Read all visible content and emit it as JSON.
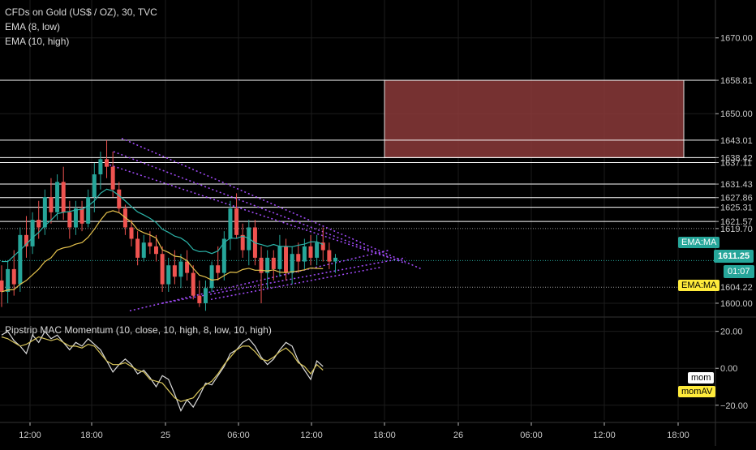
{
  "header": {
    "symbol": "CFDs on Gold (US$ / OZ), 30, TVC",
    "ema1": "EMA (8, low)",
    "ema2": "EMA (10, high)",
    "indicator": "Pipstrip MAC Momentum (10, close, 10, high, 8, low, 10, high)"
  },
  "colors": {
    "background": "#000000",
    "up": "#26a69a",
    "down": "#ef5350",
    "ema_low": "#e6c34d",
    "ema_high": "#2bb3a8",
    "channel": "#a64dff",
    "zone_fill": "#8b3a3a",
    "price_tag": "#26a69a",
    "ema_tag_teal": "#26a69a",
    "ema_tag_yellow": "#ffeb3b"
  },
  "tags": {
    "ema_teal": "EMA:MA",
    "ema_yellow": "EMA:MA",
    "price": "1611.25",
    "timer": "01:07",
    "mom": "mom",
    "momav": "momAV"
  },
  "chart_data": [
    {
      "type": "candlestick",
      "title": "CFDs on Gold (US$ / OZ), 30, TVC",
      "ylim": [
        1597,
        1680
      ],
      "y_ticks": [
        1600.0,
        1650.0,
        1670.0
      ],
      "x_ticks": [
        "12:00",
        "18:00",
        "25",
        "06:00",
        "12:00",
        "18:00",
        "26",
        "06:00",
        "12:00",
        "18:00"
      ],
      "level_labels": [
        1658.81,
        1643.01,
        1638.42,
        1637.11,
        1631.43,
        1627.86,
        1625.31,
        1621.57,
        1619.7,
        1604.22
      ],
      "last_price": 1611.25,
      "zone": {
        "x_from": "17:30",
        "x_to": "21:30",
        "y_from": 1638.42,
        "y_to": 1658.81
      },
      "candles": [
        {
          "o": 1606,
          "h": 1610,
          "l": 1599,
          "c": 1603
        },
        {
          "o": 1603,
          "h": 1611,
          "l": 1600,
          "c": 1609
        },
        {
          "o": 1609,
          "h": 1614,
          "l": 1602,
          "c": 1605
        },
        {
          "o": 1605,
          "h": 1620,
          "l": 1603,
          "c": 1618
        },
        {
          "o": 1618,
          "h": 1623,
          "l": 1612,
          "c": 1615
        },
        {
          "o": 1615,
          "h": 1624,
          "l": 1613,
          "c": 1622
        },
        {
          "o": 1622,
          "h": 1627,
          "l": 1617,
          "c": 1620
        },
        {
          "o": 1620,
          "h": 1630,
          "l": 1618,
          "c": 1628
        },
        {
          "o": 1628,
          "h": 1633,
          "l": 1621,
          "c": 1624
        },
        {
          "o": 1624,
          "h": 1634,
          "l": 1622,
          "c": 1632
        },
        {
          "o": 1632,
          "h": 1636,
          "l": 1622,
          "c": 1624
        },
        {
          "o": 1624,
          "h": 1627,
          "l": 1617,
          "c": 1620
        },
        {
          "o": 1620,
          "h": 1627,
          "l": 1618,
          "c": 1625
        },
        {
          "o": 1625,
          "h": 1627,
          "l": 1619,
          "c": 1621
        },
        {
          "o": 1621,
          "h": 1630,
          "l": 1620,
          "c": 1628
        },
        {
          "o": 1628,
          "h": 1637,
          "l": 1624,
          "c": 1634
        },
        {
          "o": 1634,
          "h": 1640,
          "l": 1630,
          "c": 1638
        },
        {
          "o": 1638,
          "h": 1643,
          "l": 1633,
          "c": 1636
        },
        {
          "o": 1636,
          "h": 1640,
          "l": 1628,
          "c": 1630
        },
        {
          "o": 1630,
          "h": 1632,
          "l": 1624,
          "c": 1625
        },
        {
          "o": 1625,
          "h": 1626,
          "l": 1618,
          "c": 1620
        },
        {
          "o": 1620,
          "h": 1622,
          "l": 1615,
          "c": 1617
        },
        {
          "o": 1617,
          "h": 1619,
          "l": 1610,
          "c": 1612
        },
        {
          "o": 1612,
          "h": 1618,
          "l": 1611,
          "c": 1616
        },
        {
          "o": 1616,
          "h": 1619,
          "l": 1613,
          "c": 1615
        },
        {
          "o": 1615,
          "h": 1618,
          "l": 1611,
          "c": 1613
        },
        {
          "o": 1613,
          "h": 1615,
          "l": 1603,
          "c": 1605
        },
        {
          "o": 1605,
          "h": 1612,
          "l": 1603,
          "c": 1610
        },
        {
          "o": 1610,
          "h": 1614,
          "l": 1605,
          "c": 1607
        },
        {
          "o": 1607,
          "h": 1613,
          "l": 1604,
          "c": 1611
        },
        {
          "o": 1611,
          "h": 1614,
          "l": 1606,
          "c": 1608
        },
        {
          "o": 1608,
          "h": 1610,
          "l": 1601,
          "c": 1602
        },
        {
          "o": 1602,
          "h": 1606,
          "l": 1599,
          "c": 1600
        },
        {
          "o": 1600,
          "h": 1606,
          "l": 1598,
          "c": 1604
        },
        {
          "o": 1604,
          "h": 1611,
          "l": 1603,
          "c": 1610
        },
        {
          "o": 1610,
          "h": 1615,
          "l": 1606,
          "c": 1608
        },
        {
          "o": 1608,
          "h": 1619,
          "l": 1606,
          "c": 1617
        },
        {
          "o": 1617,
          "h": 1627,
          "l": 1614,
          "c": 1625
        },
        {
          "o": 1625,
          "h": 1629,
          "l": 1617,
          "c": 1618
        },
        {
          "o": 1618,
          "h": 1621,
          "l": 1612,
          "c": 1614
        },
        {
          "o": 1614,
          "h": 1622,
          "l": 1610,
          "c": 1620
        },
        {
          "o": 1620,
          "h": 1622,
          "l": 1610,
          "c": 1612
        },
        {
          "o": 1612,
          "h": 1615,
          "l": 1600,
          "c": 1608
        },
        {
          "o": 1608,
          "h": 1614,
          "l": 1604,
          "c": 1612
        },
        {
          "o": 1612,
          "h": 1614,
          "l": 1606,
          "c": 1609
        },
        {
          "o": 1609,
          "h": 1618,
          "l": 1607,
          "c": 1615
        },
        {
          "o": 1615,
          "h": 1617,
          "l": 1606,
          "c": 1608
        },
        {
          "o": 1608,
          "h": 1615,
          "l": 1605,
          "c": 1613
        },
        {
          "o": 1613,
          "h": 1616,
          "l": 1608,
          "c": 1611
        },
        {
          "o": 1611,
          "h": 1617,
          "l": 1609,
          "c": 1615
        },
        {
          "o": 1615,
          "h": 1618,
          "l": 1610,
          "c": 1612
        },
        {
          "o": 1612,
          "h": 1618,
          "l": 1610,
          "c": 1616
        },
        {
          "o": 1616,
          "h": 1620,
          "l": 1611,
          "c": 1614
        },
        {
          "o": 1614,
          "h": 1616,
          "l": 1609,
          "c": 1611
        },
        {
          "o": 1611,
          "h": 1613,
          "l": 1608,
          "c": 1612
        }
      ],
      "ema_low": [
        1603,
        1603.5,
        1603.6,
        1605,
        1606,
        1607.5,
        1609,
        1611,
        1612,
        1614,
        1614.6,
        1614.9,
        1615.6,
        1616,
        1617.4,
        1619.5,
        1621.9,
        1623.9,
        1624.4,
        1623.9,
        1622.6,
        1621.4,
        1619.4,
        1618.6,
        1618,
        1617.2,
        1614.1,
        1613.4,
        1612.4,
        1612.2,
        1611.2,
        1609.2,
        1607.4,
        1606.9,
        1606.1,
        1606.3,
        1607.3,
        1608.2,
        1608.1,
        1608.9,
        1609.2,
        1608.7,
        1608.7,
        1608.5,
        1608.8,
        1608.2,
        1608.1,
        1608.3,
        1608.5,
        1608.8,
        1609.3,
        1609.2,
        1609.1
      ],
      "ema_high": [
        1611,
        1611,
        1612.5,
        1614,
        1615.6,
        1617.3,
        1618.7,
        1620.5,
        1621.9,
        1623.6,
        1624,
        1624.2,
        1624.6,
        1624.8,
        1625.7,
        1627,
        1629,
        1630.1,
        1629.6,
        1628.4,
        1627,
        1625.5,
        1624.1,
        1623.3,
        1622.4,
        1621.3,
        1619.5,
        1618.7,
        1617.7,
        1617.2,
        1616.1,
        1614.2,
        1613.6,
        1613.7,
        1613.1,
        1613.8,
        1616,
        1617.2,
        1617.1,
        1617.7,
        1617.1,
        1615.9,
        1615.5,
        1615,
        1615.5,
        1615,
        1615,
        1614.9,
        1615.3,
        1615.6,
        1616.2,
        1616.2,
        1615.5
      ]
    },
    {
      "type": "line",
      "title": "Pipstrip MAC Momentum (10, close, 10, high, 8, low, 10, high)",
      "ylim": [
        -28,
        26
      ],
      "y_ticks": [
        20.0,
        0.0,
        -20.0
      ],
      "x_ticks": [
        "12:00",
        "18:00",
        "25",
        "06:00",
        "12:00",
        "18:00",
        "26",
        "06:00",
        "12:00",
        "18:00"
      ],
      "series": [
        {
          "name": "mom",
          "values": [
            18,
            20,
            15,
            12,
            8,
            18,
            14,
            20,
            16,
            18,
            14,
            10,
            14,
            12,
            16,
            13,
            10,
            4,
            -2,
            2,
            5,
            2,
            -3,
            -1,
            -5,
            -10,
            -4,
            -6,
            -14,
            -23,
            -17,
            -21,
            -15,
            -8,
            -9,
            -4,
            1,
            8,
            10,
            14,
            16,
            12,
            6,
            2,
            5,
            10,
            14,
            12,
            4,
            -1,
            -6,
            4,
            1
          ]
        },
        {
          "name": "momAV",
          "values": [
            17,
            16,
            14,
            12,
            13,
            15,
            17,
            16,
            15,
            16,
            14,
            12,
            12,
            11,
            13,
            12,
            8,
            4,
            2,
            2,
            3,
            1,
            -1,
            -2,
            -6,
            -7,
            -8,
            -12,
            -16,
            -18,
            -17,
            -16,
            -12,
            -9,
            -7,
            -3,
            2,
            6,
            10,
            12,
            12,
            9,
            5,
            4,
            6,
            9,
            11,
            8,
            3,
            1,
            -3,
            2,
            -1
          ]
        }
      ]
    }
  ]
}
